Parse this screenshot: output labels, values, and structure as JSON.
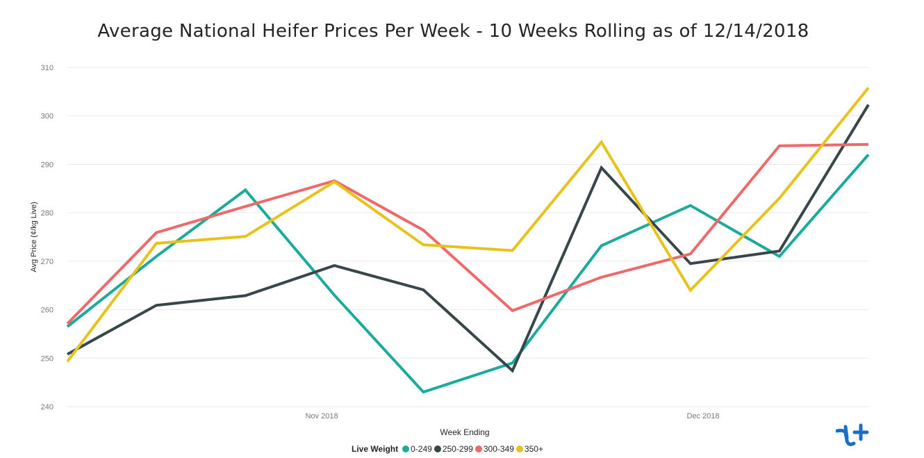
{
  "chart_data": {
    "type": "line",
    "title": "Average National Heifer Prices Per Week - 10 Weeks Rolling as of 12/14/2018",
    "xlabel": "Week Ending",
    "ylabel": "Avg Price (¢/kg Live)",
    "x": [
      "2018-10-12",
      "2018-10-19",
      "2018-10-26",
      "2018-11-02",
      "2018-11-09",
      "2018-11-16",
      "2018-11-23",
      "2018-11-30",
      "2018-12-07",
      "2018-12-14"
    ],
    "x_tick_labels": [
      "Nov 2018",
      "Dec 2018"
    ],
    "x_tick_dates": [
      "2018-11-01",
      "2018-12-01"
    ],
    "ylim": [
      240,
      310
    ],
    "y_ticks": [
      240,
      250,
      260,
      270,
      280,
      290,
      300,
      310
    ],
    "grid": true,
    "legend_title": "Live Weight",
    "legend_position": "bottom-center",
    "series": [
      {
        "name": "0-249",
        "color": "#1aab9b",
        "values": [
          256.5,
          271.0,
          284.7,
          263.0,
          243.0,
          249.0,
          273.2,
          281.5,
          271.0,
          292.0
        ]
      },
      {
        "name": "250-299",
        "color": "#374649",
        "values": [
          250.8,
          260.9,
          262.9,
          269.1,
          264.1,
          247.4,
          289.3,
          269.5,
          272.1,
          302.3
        ]
      },
      {
        "name": "300-349",
        "color": "#ee6a6a",
        "values": [
          257.1,
          275.9,
          281.3,
          286.6,
          276.4,
          259.8,
          266.7,
          271.5,
          293.8,
          294.1
        ]
      },
      {
        "name": "350+",
        "color": "#e8c21a",
        "values": [
          249.3,
          273.7,
          275.1,
          286.4,
          273.4,
          272.2,
          294.6,
          264.0,
          283.0,
          305.8
        ]
      }
    ]
  }
}
